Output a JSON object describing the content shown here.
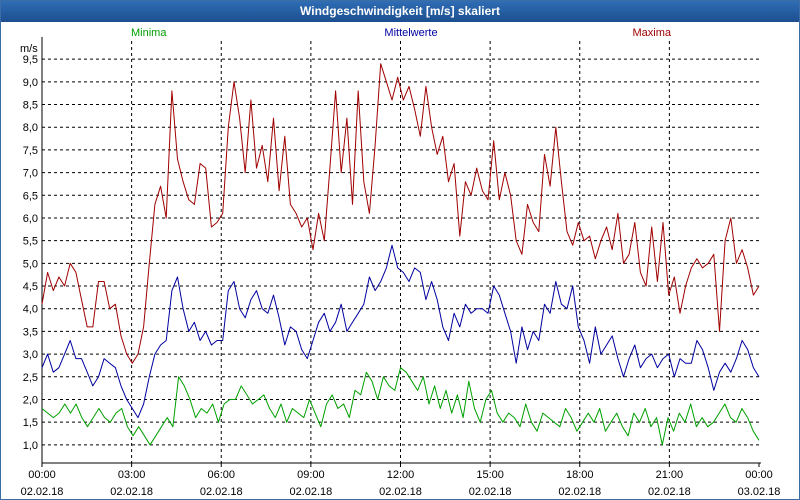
{
  "chart_data": {
    "type": "line",
    "title": "Windgeschwindigkeit [m/s] skaliert",
    "ylabel": "m/s",
    "ylim": [
      0.6,
      9.9
    ],
    "yticks": [
      {
        "value": 1.0,
        "label": "1,0"
      },
      {
        "value": 1.5,
        "label": "1,5"
      },
      {
        "value": 2.0,
        "label": "2,0"
      },
      {
        "value": 2.5,
        "label": "2,5"
      },
      {
        "value": 3.0,
        "label": "3,0"
      },
      {
        "value": 3.5,
        "label": "3,5"
      },
      {
        "value": 4.0,
        "label": "4,0"
      },
      {
        "value": 4.5,
        "label": "4,5"
      },
      {
        "value": 5.0,
        "label": "5,0"
      },
      {
        "value": 5.5,
        "label": "5,5"
      },
      {
        "value": 6.0,
        "label": "6,0"
      },
      {
        "value": 6.5,
        "label": "6,5"
      },
      {
        "value": 7.0,
        "label": "7,0"
      },
      {
        "value": 7.5,
        "label": "7,5"
      },
      {
        "value": 8.0,
        "label": "8,0"
      },
      {
        "value": 8.5,
        "label": "8,5"
      },
      {
        "value": 9.0,
        "label": "9,0"
      },
      {
        "value": 9.5,
        "label": "9,5"
      }
    ],
    "xlim": [
      0,
      24
    ],
    "xticks": [
      {
        "value": 0,
        "time": "00:00",
        "date": "02.02.18"
      },
      {
        "value": 3,
        "time": "03:00",
        "date": "02.02.18"
      },
      {
        "value": 6,
        "time": "06:00",
        "date": "02.02.18"
      },
      {
        "value": 9,
        "time": "09:00",
        "date": "02.02.18"
      },
      {
        "value": 12,
        "time": "12:00",
        "date": "02.02.18"
      },
      {
        "value": 15,
        "time": "15:00",
        "date": "02.02.18"
      },
      {
        "value": 18,
        "time": "18:00",
        "date": "02.02.18"
      },
      {
        "value": 21,
        "time": "21:00",
        "date": "02.02.18"
      },
      {
        "value": 24,
        "time": "00:00",
        "date": "03.02.18"
      }
    ],
    "grid": true,
    "series": [
      {
        "name": "Minima",
        "color": "#00a000",
        "legend_position": "top-left",
        "values": [
          1.8,
          1.7,
          1.6,
          1.7,
          1.9,
          1.7,
          1.9,
          1.6,
          1.4,
          1.6,
          1.8,
          1.6,
          1.5,
          1.7,
          1.8,
          1.4,
          1.2,
          1.4,
          1.2,
          1.0,
          1.2,
          1.4,
          1.6,
          1.4,
          2.5,
          2.3,
          2.0,
          1.6,
          1.8,
          1.7,
          1.9,
          1.5,
          1.9,
          2.0,
          2.0,
          2.3,
          2.1,
          1.9,
          2.0,
          2.1,
          1.8,
          1.6,
          1.9,
          1.5,
          1.8,
          1.7,
          1.6,
          2.0,
          1.7,
          1.4,
          1.9,
          2.1,
          1.8,
          1.9,
          1.6,
          2.2,
          2.1,
          2.6,
          2.4,
          2.0,
          2.5,
          2.3,
          2.2,
          2.7,
          2.6,
          2.4,
          2.2,
          2.5,
          1.9,
          2.3,
          1.8,
          2.2,
          1.7,
          2.1,
          1.6,
          2.4,
          1.8,
          1.5,
          2.0,
          2.2,
          1.7,
          1.5,
          1.7,
          1.6,
          1.4,
          1.9,
          1.5,
          1.3,
          1.7,
          1.6,
          1.5,
          1.4,
          1.8,
          1.6,
          1.3,
          1.5,
          1.7,
          1.5,
          1.8,
          1.3,
          1.5,
          1.7,
          1.4,
          1.2,
          1.7,
          1.5,
          1.8,
          1.4,
          1.6,
          1.0,
          1.6,
          1.3,
          1.7,
          1.5,
          1.9,
          1.4,
          1.6,
          1.4,
          1.5,
          1.7,
          1.9,
          1.6,
          1.5,
          1.8,
          1.6,
          1.3,
          1.1
        ]
      },
      {
        "name": "Mittelwerte",
        "color": "#0000a0",
        "legend_position": "top-center",
        "values": [
          2.7,
          3.0,
          2.6,
          2.7,
          3.0,
          3.3,
          2.9,
          2.9,
          2.6,
          2.3,
          2.5,
          2.9,
          2.8,
          2.7,
          2.3,
          2.0,
          1.8,
          1.6,
          1.9,
          2.5,
          3.0,
          3.2,
          3.3,
          4.4,
          4.7,
          4.0,
          3.5,
          3.7,
          3.3,
          3.5,
          3.2,
          3.3,
          3.3,
          4.4,
          4.6,
          4.0,
          3.8,
          4.2,
          4.4,
          4.0,
          3.9,
          4.3,
          3.8,
          3.2,
          3.6,
          3.5,
          3.1,
          2.9,
          3.3,
          3.7,
          3.9,
          3.5,
          3.7,
          4.1,
          3.5,
          3.7,
          3.9,
          4.1,
          4.7,
          4.4,
          4.6,
          4.9,
          5.4,
          4.9,
          4.8,
          4.6,
          4.9,
          4.8,
          4.2,
          4.6,
          4.2,
          3.6,
          3.3,
          3.9,
          3.6,
          4.1,
          3.9,
          4.0,
          4.0,
          3.9,
          4.5,
          4.3,
          3.9,
          3.5,
          2.8,
          3.6,
          3.1,
          3.5,
          3.3,
          4.1,
          3.9,
          4.6,
          4.1,
          4.0,
          4.5,
          3.6,
          3.3,
          2.8,
          3.6,
          3.0,
          3.2,
          3.4,
          2.9,
          2.5,
          2.9,
          3.2,
          2.7,
          2.9,
          3.0,
          2.7,
          2.9,
          3.0,
          2.5,
          2.9,
          2.8,
          2.8,
          3.3,
          3.1,
          2.7,
          2.2,
          2.6,
          2.8,
          2.6,
          2.9,
          3.3,
          3.1,
          2.7,
          2.5
        ]
      },
      {
        "name": "Maxima",
        "color": "#a00000",
        "legend_position": "top-right",
        "values": [
          4.1,
          4.8,
          4.4,
          4.7,
          4.5,
          5.0,
          4.8,
          4.2,
          3.6,
          3.6,
          4.6,
          4.6,
          4.0,
          4.1,
          3.4,
          3.0,
          2.8,
          3.0,
          3.6,
          5.0,
          6.3,
          6.7,
          6.0,
          8.8,
          7.3,
          6.8,
          6.4,
          6.3,
          7.2,
          7.1,
          5.8,
          5.9,
          6.1,
          8.0,
          9.0,
          8.2,
          7.0,
          8.6,
          7.1,
          7.6,
          6.8,
          8.2,
          6.6,
          7.8,
          6.3,
          6.1,
          5.8,
          6.0,
          5.3,
          6.1,
          5.5,
          7.1,
          8.8,
          7.0,
          8.2,
          6.3,
          8.8,
          6.8,
          6.1,
          7.6,
          9.4,
          9.0,
          8.6,
          9.1,
          8.6,
          8.9,
          8.4,
          7.8,
          8.9,
          8.0,
          7.4,
          7.8,
          6.8,
          7.2,
          5.6,
          6.8,
          6.5,
          7.1,
          6.6,
          6.4,
          7.7,
          6.4,
          7.0,
          6.5,
          5.5,
          5.2,
          6.3,
          5.9,
          5.7,
          7.4,
          6.7,
          8.0,
          6.8,
          5.7,
          5.4,
          5.9,
          5.5,
          5.6,
          5.1,
          5.5,
          5.8,
          5.3,
          6.1,
          5.0,
          5.2,
          5.9,
          4.8,
          4.5,
          5.8,
          4.6,
          5.9,
          4.3,
          4.7,
          3.9,
          4.5,
          4.9,
          5.1,
          4.9,
          5.0,
          5.2,
          3.5,
          5.5,
          6.0,
          5.0,
          5.3,
          4.9,
          4.3,
          4.5
        ]
      }
    ]
  }
}
